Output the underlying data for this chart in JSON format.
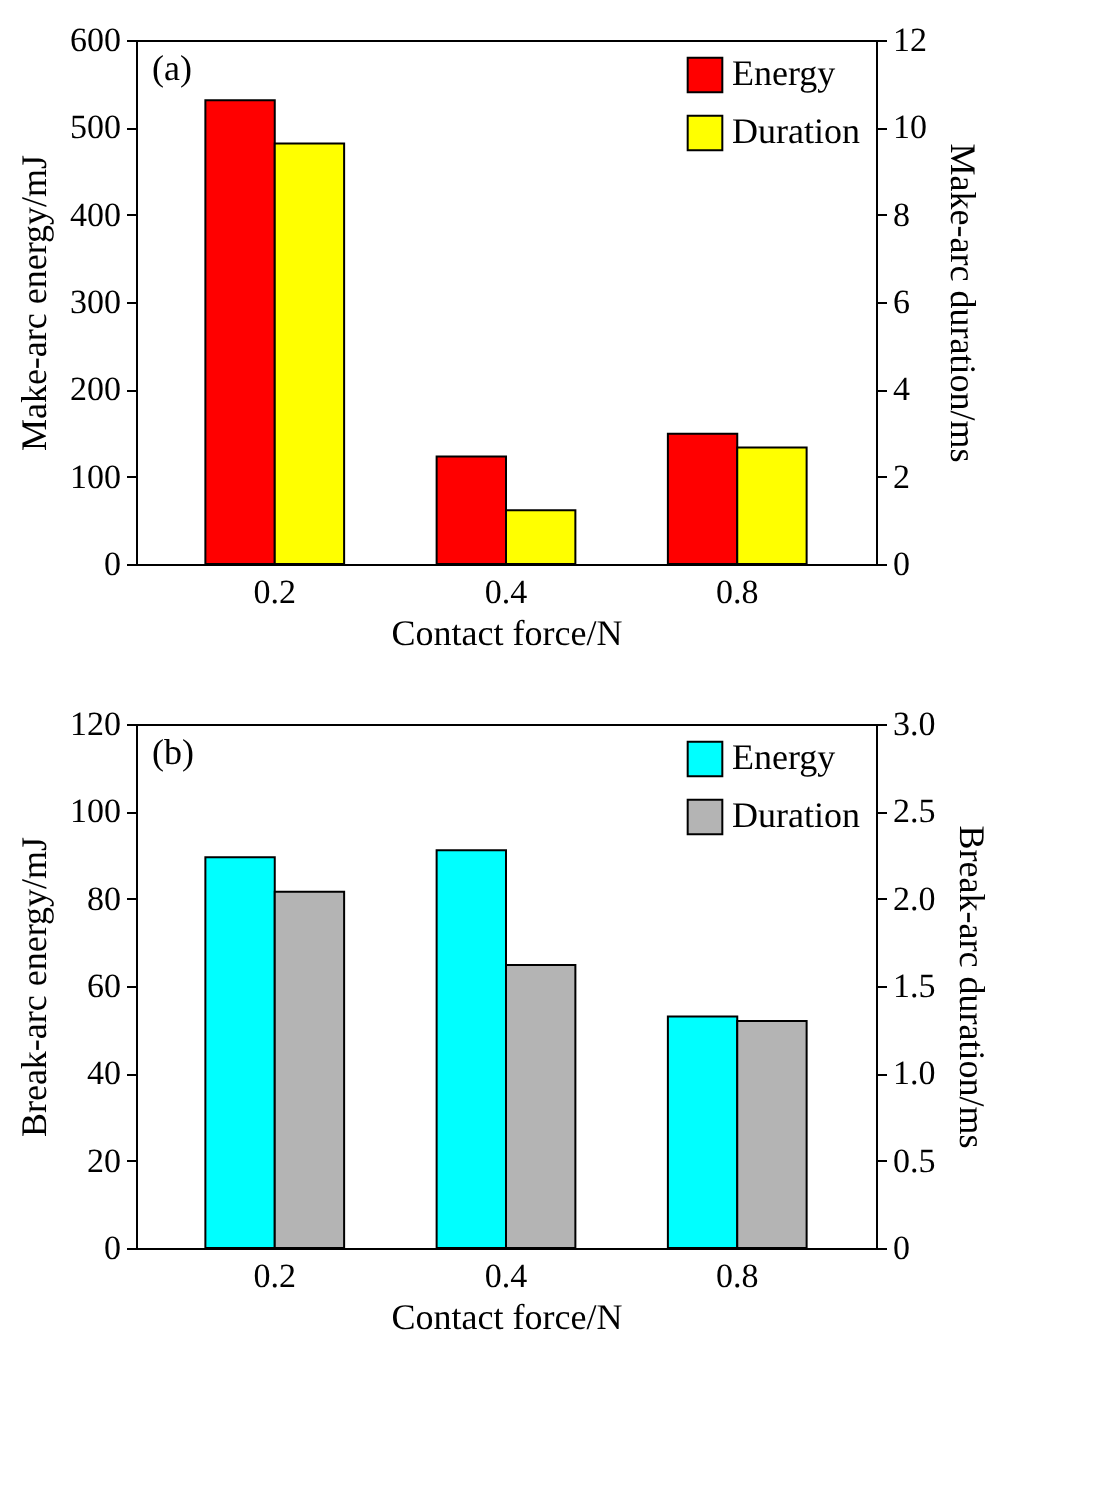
{
  "chart_data": [
    {
      "type": "bar",
      "annotations": [
        "(a)"
      ],
      "categories": [
        "0.2",
        "0.4",
        "0.8"
      ],
      "xlabel": "Contact force/N",
      "ylabel": "Make-arc energy/mJ",
      "y2label": "Make-arc duration/ms",
      "legend": "top right",
      "ylim": [
        0,
        600
      ],
      "yticks": [
        0,
        100,
        200,
        300,
        400,
        500,
        600
      ],
      "y2lim": [
        0,
        12
      ],
      "y2ticks": [
        0,
        2,
        4,
        6,
        8,
        10,
        12
      ],
      "series": [
        {
          "name": "Energy",
          "color": "#ff0000",
          "values": [
            531,
            123,
            149
          ]
        },
        {
          "name": "Duration",
          "color": "#ffff00",
          "values": [
            9.63,
            1.23,
            2.67
          ],
          "axis": "y2"
        }
      ]
    },
    {
      "type": "bar",
      "annotations": [
        "(b)"
      ],
      "categories": [
        "0.2",
        "0.4",
        "0.8"
      ],
      "xlabel": "Contact force/N",
      "ylabel": "Break-arc energy/mJ",
      "y2label": "Break-arc duration/ms",
      "legend": "top right",
      "ylim": [
        0,
        120
      ],
      "yticks": [
        0,
        20,
        40,
        60,
        80,
        100,
        120
      ],
      "y2lim": [
        0,
        3
      ],
      "y2ticks": [
        0,
        {
          "value": 0.5,
          "label": "0.5"
        },
        {
          "value": 1,
          "label": "1.0"
        },
        {
          "value": 1.5,
          "label": "1.5"
        },
        {
          "value": 2,
          "label": "2.0"
        },
        {
          "value": 2.5,
          "label": "2.5"
        },
        {
          "value": 3,
          "label": "3.0"
        }
      ],
      "series": [
        {
          "name": "Energy",
          "color": "#00ffff",
          "values": [
            89.5,
            91.1,
            53
          ]
        },
        {
          "name": "Duration",
          "color": "#b4b4b4",
          "values": [
            2.04,
            1.62,
            1.3
          ],
          "axis": "y2"
        }
      ]
    }
  ]
}
